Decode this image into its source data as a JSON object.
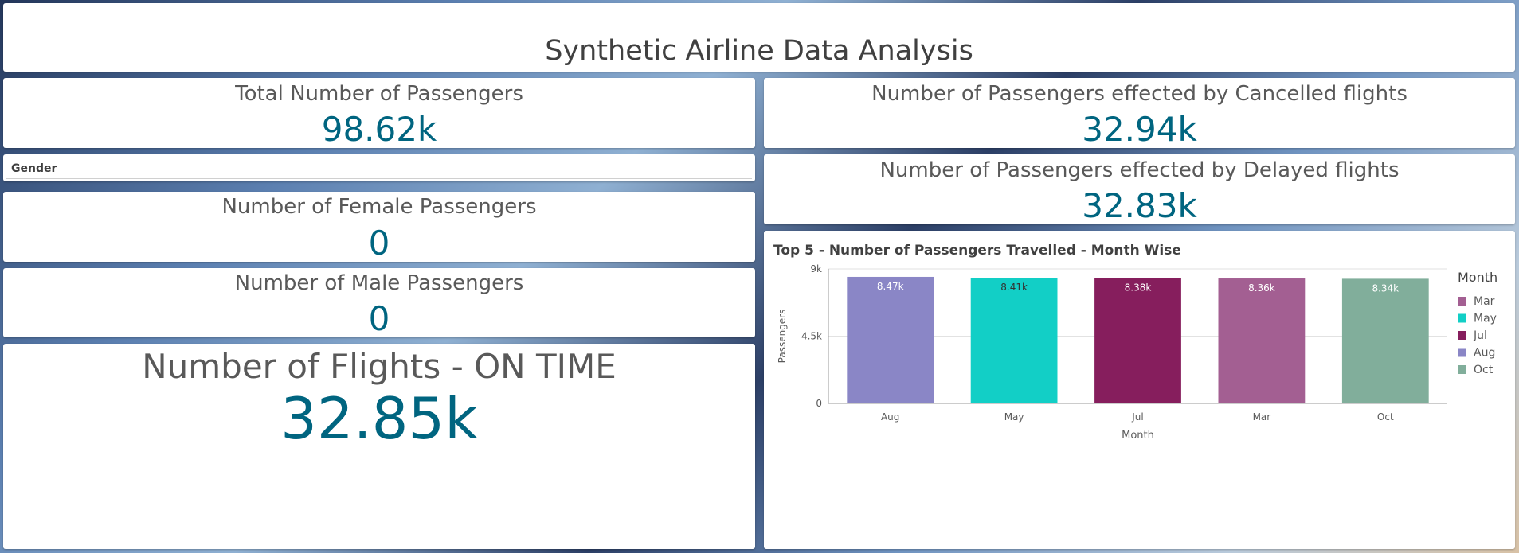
{
  "header": {
    "title": "Synthetic Airline Data Analysis"
  },
  "kpis": {
    "total_passengers": {
      "label": "Total Number of Passengers",
      "value": "98.62k"
    },
    "cancelled": {
      "label": "Number of Passengers effected by Cancelled flights",
      "value": "32.94k"
    },
    "delayed": {
      "label": "Number of Passengers effected by Delayed flights",
      "value": "32.83k"
    },
    "female": {
      "label": "Number of Female Passengers",
      "value": "0"
    },
    "male": {
      "label": "Number of Male Passengers",
      "value": "0"
    },
    "on_time": {
      "label": "Number of Flights - ON TIME",
      "value": "32.85k"
    }
  },
  "filter": {
    "label": "Gender"
  },
  "chart_data": {
    "type": "bar",
    "title": "Top 5 - Number of Passengers Travelled - Month Wise",
    "xlabel": "Month",
    "ylabel": "Passengers",
    "ylim": [
      0,
      9000
    ],
    "yticks": [
      {
        "value": 0,
        "label": "0"
      },
      {
        "value": 4500,
        "label": "4.5k"
      },
      {
        "value": 9000,
        "label": "9k"
      }
    ],
    "categories": [
      "Aug",
      "May",
      "Jul",
      "Mar",
      "Oct"
    ],
    "values": [
      8470,
      8410,
      8380,
      8360,
      8340
    ],
    "data_labels": [
      "8.47k",
      "8.41k",
      "8.38k",
      "8.36k",
      "8.34k"
    ],
    "bar_colors": [
      "#8a86c6",
      "#12cfc6",
      "#861e5d",
      "#a35f92",
      "#81ae9b"
    ],
    "label_colors": [
      "#ffffff",
      "#333333",
      "#ffffff",
      "#ffffff",
      "#ffffff"
    ],
    "grid": true,
    "legend": {
      "title": "Month",
      "position": "right",
      "items": [
        {
          "label": "Mar",
          "color": "#a35f92"
        },
        {
          "label": "May",
          "color": "#12cfc6"
        },
        {
          "label": "Jul",
          "color": "#861e5d"
        },
        {
          "label": "Aug",
          "color": "#8a86c6"
        },
        {
          "label": "Oct",
          "color": "#81ae9b"
        }
      ]
    }
  }
}
